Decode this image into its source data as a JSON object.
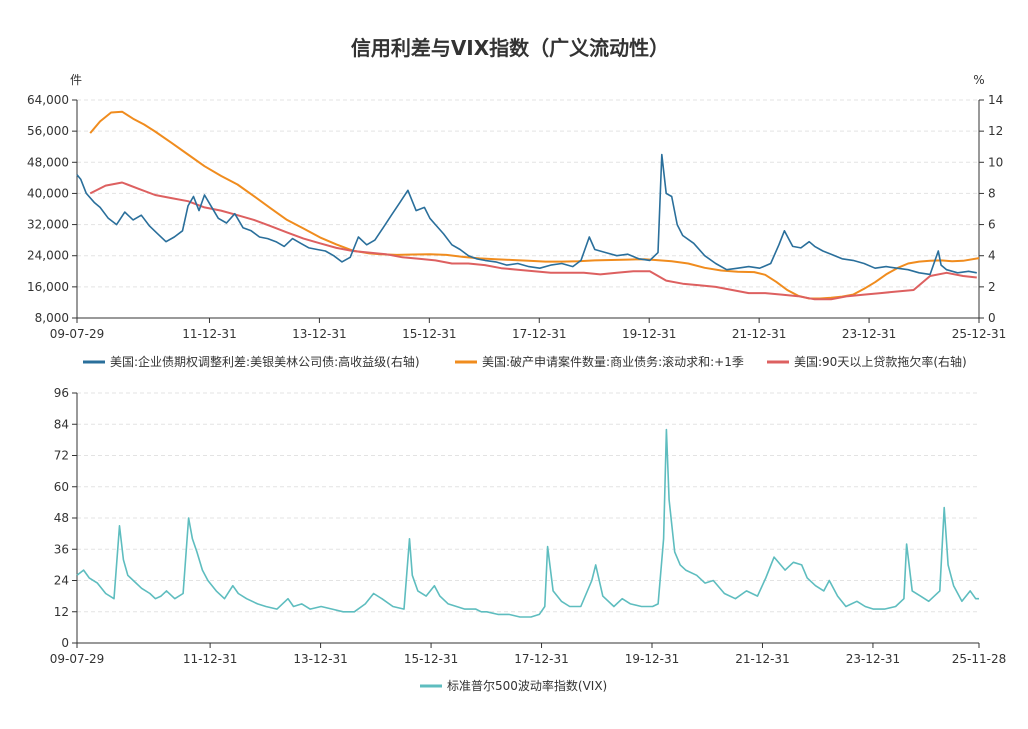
{
  "title": "信用利差与VIX指数（广义流动性）",
  "chart_data": [
    {
      "type": "line",
      "name": "top",
      "left_unit": "件",
      "right_unit": "%",
      "left_ylim": [
        8000,
        64000
      ],
      "right_ylim": [
        0,
        14
      ],
      "left_ticks": [
        "64,000",
        "56,000",
        "48,000",
        "40,000",
        "32,000",
        "24,000",
        "16,000",
        "8,000"
      ],
      "right_ticks": [
        "14",
        "12",
        "10",
        "8",
        "6",
        "4",
        "2",
        "0"
      ],
      "x_range": [
        2009.58,
        2025.99
      ],
      "x_ticks": [
        "09-07-29",
        "11-12-31",
        "13-12-31",
        "15-12-31",
        "17-12-31",
        "19-12-31",
        "21-12-31",
        "23-12-31",
        "25-12-31"
      ],
      "x_tick_values": [
        2009.58,
        2011.99,
        2013.99,
        2015.99,
        2017.99,
        2019.99,
        2021.99,
        2023.99,
        2025.99
      ],
      "series": [
        {
          "name": "美国:企业债期权调整利差:美银美林公司债:高收益级(右轴)",
          "axis": "right",
          "color": "#2a6f9b",
          "x": [
            2009.58,
            2009.65,
            2009.75,
            2009.9,
            2010.0,
            2010.15,
            2010.3,
            2010.45,
            2010.6,
            2010.75,
            2010.9,
            2011.05,
            2011.2,
            2011.35,
            2011.5,
            2011.6,
            2011.7,
            2011.8,
            2011.9,
            2012.0,
            2012.15,
            2012.3,
            2012.45,
            2012.6,
            2012.75,
            2012.9,
            2013.05,
            2013.2,
            2013.35,
            2013.5,
            2013.65,
            2013.8,
            2013.95,
            2014.1,
            2014.25,
            2014.4,
            2014.55,
            2014.7,
            2014.85,
            2015.0,
            2015.15,
            2015.3,
            2015.45,
            2015.6,
            2015.75,
            2015.9,
            2016.0,
            2016.1,
            2016.25,
            2016.4,
            2016.55,
            2016.7,
            2016.85,
            2017.0,
            2017.2,
            2017.4,
            2017.6,
            2017.8,
            2018.0,
            2018.2,
            2018.4,
            2018.6,
            2018.75,
            2018.9,
            2019.0,
            2019.2,
            2019.4,
            2019.6,
            2019.8,
            2020.0,
            2020.15,
            2020.22,
            2020.3,
            2020.4,
            2020.5,
            2020.6,
            2020.8,
            2021.0,
            2021.2,
            2021.4,
            2021.6,
            2021.8,
            2022.0,
            2022.2,
            2022.35,
            2022.45,
            2022.6,
            2022.75,
            2022.9,
            2023.0,
            2023.15,
            2023.3,
            2023.5,
            2023.7,
            2023.9,
            2024.1,
            2024.3,
            2024.5,
            2024.7,
            2024.9,
            2025.1,
            2025.25,
            2025.3,
            2025.4,
            2025.6,
            2025.8,
            2025.95
          ],
          "values": [
            9.2,
            8.9,
            8.0,
            7.4,
            7.1,
            6.4,
            6.0,
            6.8,
            6.3,
            6.6,
            5.9,
            5.4,
            4.9,
            5.2,
            5.6,
            7.2,
            7.8,
            6.9,
            7.9,
            7.3,
            6.4,
            6.1,
            6.7,
            5.8,
            5.6,
            5.2,
            5.1,
            4.9,
            4.6,
            5.1,
            4.8,
            4.5,
            4.4,
            4.3,
            4.0,
            3.6,
            3.9,
            5.2,
            4.7,
            5.0,
            5.8,
            6.6,
            7.4,
            8.2,
            6.9,
            7.1,
            6.4,
            6.0,
            5.4,
            4.7,
            4.4,
            4.0,
            3.8,
            3.7,
            3.6,
            3.4,
            3.5,
            3.3,
            3.2,
            3.4,
            3.5,
            3.3,
            3.7,
            5.2,
            4.4,
            4.2,
            4.0,
            4.1,
            3.8,
            3.7,
            4.2,
            10.5,
            8.0,
            7.8,
            6.0,
            5.3,
            4.8,
            4.0,
            3.5,
            3.1,
            3.2,
            3.3,
            3.2,
            3.5,
            4.7,
            5.6,
            4.6,
            4.5,
            4.9,
            4.6,
            4.3,
            4.1,
            3.8,
            3.7,
            3.5,
            3.2,
            3.3,
            3.2,
            3.1,
            2.9,
            2.8,
            4.3,
            3.4,
            3.1,
            2.9,
            3.0,
            2.9
          ]
        },
        {
          "name": "美国:破产申请案件数量:商业债务:滚动求和:+1季",
          "axis": "left",
          "color": "#f08c1e",
          "x": [
            2009.82,
            2010.0,
            2010.2,
            2010.4,
            2010.6,
            2010.8,
            2011.0,
            2011.3,
            2011.6,
            2011.9,
            2012.2,
            2012.5,
            2012.8,
            2013.1,
            2013.4,
            2013.7,
            2014.0,
            2014.3,
            2014.6,
            2014.9,
            2015.1,
            2015.4,
            2015.7,
            2016.0,
            2016.3,
            2016.6,
            2016.9,
            2017.2,
            2017.5,
            2017.8,
            2018.1,
            2018.4,
            2018.7,
            2019.0,
            2019.3,
            2019.6,
            2019.9,
            2020.1,
            2020.4,
            2020.7,
            2021.0,
            2021.3,
            2021.6,
            2021.9,
            2022.1,
            2022.3,
            2022.5,
            2022.7,
            2022.9,
            2023.1,
            2023.3,
            2023.5,
            2023.7,
            2023.9,
            2024.1,
            2024.3,
            2024.5,
            2024.7,
            2024.9,
            2025.1,
            2025.3,
            2025.5,
            2025.7,
            2025.99
          ],
          "values": [
            55500,
            58500,
            60800,
            61000,
            59200,
            57700,
            55900,
            53000,
            50000,
            47000,
            44500,
            42300,
            39300,
            36200,
            33200,
            31000,
            28700,
            26900,
            25300,
            24600,
            24400,
            24200,
            24300,
            24400,
            24200,
            23700,
            23300,
            23100,
            22900,
            22700,
            22500,
            22500,
            22600,
            22800,
            22900,
            23000,
            23100,
            22900,
            22600,
            22000,
            20900,
            20200,
            19900,
            19800,
            19100,
            17300,
            15200,
            13700,
            13000,
            13000,
            13200,
            13500,
            14000,
            15500,
            17200,
            19200,
            20800,
            22000,
            22500,
            22700,
            22800,
            22600,
            22700,
            23400
          ]
        },
        {
          "name": "美国:90天以上贷款拖欠率(右轴)",
          "axis": "right",
          "color": "#dd6060",
          "x": [
            2009.82,
            2010.1,
            2010.4,
            2010.7,
            2011.0,
            2011.3,
            2011.6,
            2011.9,
            2012.2,
            2012.5,
            2012.8,
            2013.1,
            2013.4,
            2013.7,
            2014.0,
            2014.3,
            2014.6,
            2014.9,
            2015.2,
            2015.5,
            2015.8,
            2016.1,
            2016.4,
            2016.7,
            2017.0,
            2017.3,
            2017.6,
            2017.9,
            2018.2,
            2018.5,
            2018.8,
            2019.1,
            2019.4,
            2019.7,
            2020.0,
            2020.3,
            2020.6,
            2020.9,
            2021.2,
            2021.5,
            2021.8,
            2022.1,
            2022.4,
            2022.7,
            2023.0,
            2023.3,
            2023.6,
            2023.9,
            2024.2,
            2024.5,
            2024.8,
            2025.1,
            2025.4,
            2025.7,
            2025.95
          ],
          "values": [
            8.0,
            8.5,
            8.7,
            8.3,
            7.9,
            7.7,
            7.5,
            7.1,
            6.9,
            6.6,
            6.3,
            5.9,
            5.5,
            5.1,
            4.8,
            4.5,
            4.3,
            4.2,
            4.1,
            3.9,
            3.8,
            3.7,
            3.5,
            3.5,
            3.4,
            3.2,
            3.1,
            3.0,
            2.9,
            2.9,
            2.9,
            2.8,
            2.9,
            3.0,
            3.0,
            2.4,
            2.2,
            2.1,
            2.0,
            1.8,
            1.6,
            1.6,
            1.5,
            1.4,
            1.2,
            1.2,
            1.4,
            1.5,
            1.6,
            1.7,
            1.8,
            2.7,
            2.9,
            2.7,
            2.6
          ]
        }
      ],
      "legend": "bottom"
    },
    {
      "type": "line",
      "name": "bottom",
      "ylim": [
        0,
        96
      ],
      "y_ticks": [
        "96",
        "84",
        "72",
        "60",
        "48",
        "36",
        "24",
        "12",
        "0"
      ],
      "x_range": [
        2009.58,
        2025.91
      ],
      "x_ticks": [
        "09-07-29",
        "11-12-31",
        "13-12-31",
        "15-12-31",
        "17-12-31",
        "19-12-31",
        "21-12-31",
        "23-12-31",
        "25-11-28"
      ],
      "x_tick_values": [
        2009.58,
        2011.99,
        2013.99,
        2015.99,
        2017.99,
        2019.99,
        2021.99,
        2023.99,
        2025.91
      ],
      "series": [
        {
          "name": "标准普尔500波动率指数(VIX)",
          "color": "#5ebdbf",
          "x": [
            2009.58,
            2009.7,
            2009.8,
            2009.95,
            2010.1,
            2010.25,
            2010.35,
            2010.42,
            2010.5,
            2010.6,
            2010.75,
            2010.9,
            2011.0,
            2011.1,
            2011.2,
            2011.35,
            2011.5,
            2011.6,
            2011.67,
            2011.75,
            2011.85,
            2011.95,
            2012.1,
            2012.25,
            2012.4,
            2012.5,
            2012.65,
            2012.85,
            2013.0,
            2013.2,
            2013.4,
            2013.5,
            2013.65,
            2013.8,
            2014.0,
            2014.2,
            2014.4,
            2014.6,
            2014.8,
            2014.95,
            2015.1,
            2015.3,
            2015.5,
            2015.6,
            2015.65,
            2015.75,
            2015.9,
            2016.05,
            2016.15,
            2016.3,
            2016.45,
            2016.6,
            2016.8,
            2016.9,
            2017.0,
            2017.2,
            2017.4,
            2017.6,
            2017.8,
            2017.95,
            2018.05,
            2018.1,
            2018.2,
            2018.35,
            2018.5,
            2018.7,
            2018.9,
            2018.97,
            2019.1,
            2019.3,
            2019.45,
            2019.6,
            2019.8,
            2020.0,
            2020.1,
            2020.2,
            2020.25,
            2020.3,
            2020.4,
            2020.5,
            2020.6,
            2020.8,
            2020.95,
            2021.1,
            2021.3,
            2021.5,
            2021.7,
            2021.9,
            2022.05,
            2022.2,
            2022.4,
            2022.55,
            2022.7,
            2022.8,
            2022.95,
            2023.1,
            2023.2,
            2023.35,
            2023.5,
            2023.7,
            2023.85,
            2024.0,
            2024.2,
            2024.4,
            2024.55,
            2024.6,
            2024.7,
            2024.85,
            2025.0,
            2025.1,
            2025.2,
            2025.28,
            2025.35,
            2025.45,
            2025.6,
            2025.75,
            2025.85,
            2025.91
          ],
          "values": [
            26,
            28,
            25,
            23,
            19,
            17,
            45,
            32,
            26,
            24,
            21,
            19,
            17,
            18,
            20,
            17,
            19,
            48,
            40,
            35,
            28,
            24,
            20,
            17,
            22,
            19,
            17,
            15,
            14,
            13,
            17,
            14,
            15,
            13,
            14,
            13,
            12,
            12,
            15,
            19,
            17,
            14,
            13,
            40,
            26,
            20,
            18,
            22,
            18,
            15,
            14,
            13,
            13,
            12,
            12,
            11,
            11,
            10,
            10,
            11,
            14,
            37,
            20,
            16,
            14,
            14,
            24,
            30,
            18,
            14,
            17,
            15,
            14,
            14,
            15,
            40,
            82,
            55,
            35,
            30,
            28,
            26,
            23,
            24,
            19,
            17,
            20,
            18,
            25,
            33,
            28,
            31,
            30,
            25,
            22,
            20,
            24,
            18,
            14,
            16,
            14,
            13,
            13,
            14,
            17,
            38,
            20,
            18,
            16,
            18,
            20,
            52,
            30,
            22,
            16,
            20,
            17,
            17
          ]
        }
      ],
      "legend": "bottom"
    }
  ],
  "legend_labels": {
    "top_1": "美国:企业债期权调整利差:美银美林公司债:高收益级(右轴)",
    "top_2": "美国:破产申请案件数量:商业债务:滚动求和:+1季",
    "top_3": "美国:90天以上贷款拖欠率(右轴)",
    "bottom_1": "标准普尔500波动率指数(VIX)"
  }
}
